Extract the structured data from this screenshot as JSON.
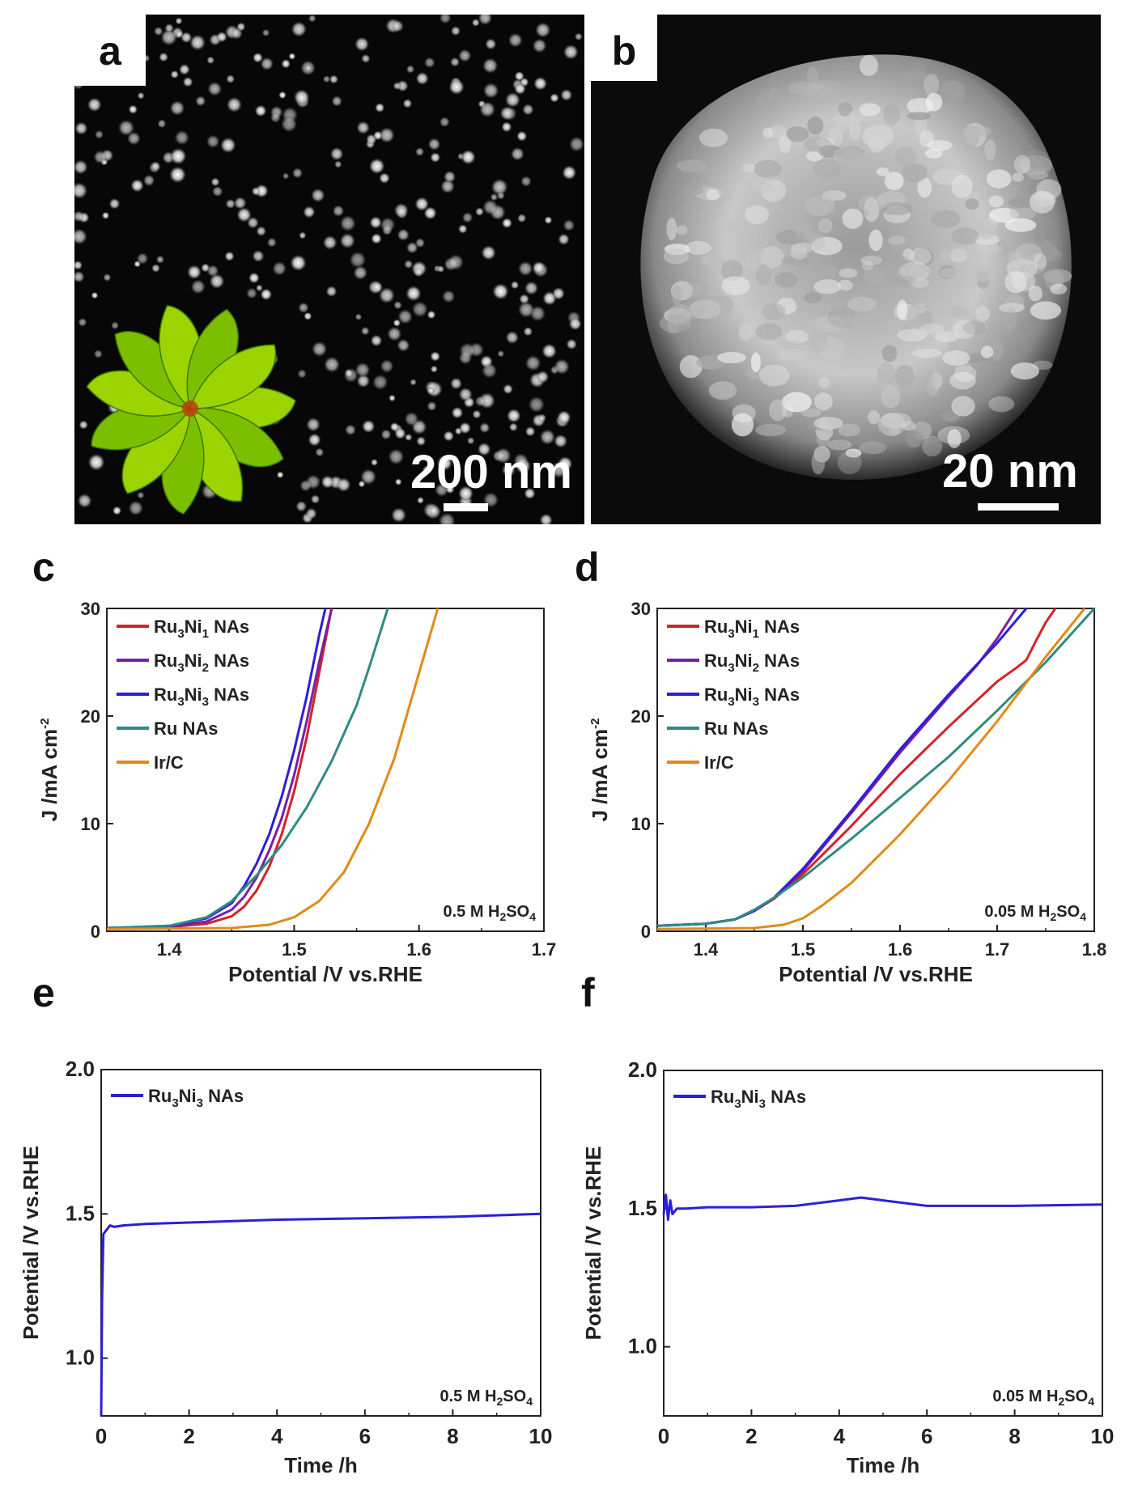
{
  "panels": {
    "a": {
      "label": "a",
      "scale_text": "200 nm"
    },
    "b": {
      "label": "b",
      "scale_text": "20 nm"
    }
  },
  "chart_data": [
    {
      "panel": "c",
      "type": "line",
      "xlabel": "Potential /V vs.RHE",
      "ylabel": "J /mA cm",
      "xlim": [
        1.35,
        1.7
      ],
      "ylim": [
        0,
        30
      ],
      "xticks": [
        1.4,
        1.5,
        1.6,
        1.7
      ],
      "yticks": [
        0,
        10,
        20,
        30
      ],
      "annotation": {
        "prefix": "0.5 M H",
        "sub1": "2",
        "mid": "SO",
        "sub2": "4"
      },
      "series": [
        {
          "name": "Ru3Ni1 NAs",
          "label_parts": [
            "Ru",
            "3",
            "Ni",
            "1",
            " NAs"
          ],
          "color": "#d2232a",
          "x": [
            1.35,
            1.4,
            1.43,
            1.45,
            1.46,
            1.47,
            1.48,
            1.49,
            1.5,
            1.51,
            1.52,
            1.53
          ],
          "y": [
            0.3,
            0.4,
            0.7,
            1.4,
            2.3,
            3.8,
            6.0,
            9.0,
            13.0,
            18.0,
            24.0,
            30.0
          ]
        },
        {
          "name": "Ru3Ni2 NAs",
          "label_parts": [
            "Ru",
            "3",
            "Ni",
            "2",
            " NAs"
          ],
          "color": "#7a1fa2",
          "x": [
            1.35,
            1.4,
            1.43,
            1.45,
            1.46,
            1.47,
            1.48,
            1.49,
            1.5,
            1.51,
            1.52,
            1.53
          ],
          "y": [
            0.3,
            0.4,
            0.9,
            2.0,
            3.2,
            5.0,
            7.5,
            10.5,
            14.5,
            19.5,
            25.0,
            30.0
          ]
        },
        {
          "name": "Ru3Ni3 NAs",
          "label_parts": [
            "Ru",
            "3",
            "Ni",
            "3",
            " NAs"
          ],
          "color": "#2b1fd8",
          "x": [
            1.35,
            1.4,
            1.43,
            1.45,
            1.46,
            1.47,
            1.48,
            1.49,
            1.5,
            1.51,
            1.52,
            1.525
          ],
          "y": [
            0.3,
            0.5,
            1.2,
            2.6,
            4.2,
            6.3,
            9.0,
            12.5,
            16.8,
            21.8,
            27.5,
            30.0
          ]
        },
        {
          "name": "Ru NAs",
          "label_parts": [
            "Ru NAs"
          ],
          "color": "#2f8a84",
          "x": [
            1.35,
            1.4,
            1.43,
            1.45,
            1.47,
            1.49,
            1.51,
            1.53,
            1.55,
            1.56,
            1.575
          ],
          "y": [
            0.3,
            0.5,
            1.3,
            2.8,
            5.2,
            8.0,
            11.5,
            15.8,
            21.0,
            24.5,
            30.0
          ]
        },
        {
          "name": "Ir/C",
          "label_parts": [
            "Ir/C"
          ],
          "color": "#e08a17",
          "x": [
            1.35,
            1.45,
            1.48,
            1.5,
            1.52,
            1.54,
            1.56,
            1.58,
            1.6,
            1.615
          ],
          "y": [
            0.2,
            0.3,
            0.6,
            1.3,
            2.8,
            5.5,
            10.0,
            16.0,
            24.0,
            30.0
          ]
        }
      ]
    },
    {
      "panel": "d",
      "type": "line",
      "xlabel": "Potential /V vs.RHE",
      "ylabel": "J /mA cm",
      "xlim": [
        1.35,
        1.8
      ],
      "ylim": [
        0,
        30
      ],
      "xticks": [
        1.4,
        1.5,
        1.6,
        1.7,
        1.8
      ],
      "yticks": [
        0,
        10,
        20,
        30
      ],
      "annotation": {
        "prefix": "0.05 M H",
        "sub1": "2",
        "mid": "SO",
        "sub2": "4"
      },
      "series": [
        {
          "name": "Ru3Ni1 NAs",
          "label_parts": [
            "Ru",
            "3",
            "Ni",
            "1",
            " NAs"
          ],
          "color": "#d2232a",
          "x": [
            1.35,
            1.4,
            1.43,
            1.45,
            1.47,
            1.5,
            1.55,
            1.6,
            1.65,
            1.7,
            1.72,
            1.73,
            1.74,
            1.75,
            1.76
          ],
          "y": [
            0.5,
            0.7,
            1.1,
            1.9,
            3.0,
            5.3,
            9.8,
            14.6,
            19.0,
            23.2,
            24.5,
            25.2,
            27.0,
            28.7,
            30.0
          ]
        },
        {
          "name": "Ru3Ni2 NAs",
          "label_parts": [
            "Ru",
            "3",
            "Ni",
            "2",
            " NAs"
          ],
          "color": "#7a1fa2",
          "x": [
            1.35,
            1.4,
            1.43,
            1.45,
            1.47,
            1.5,
            1.55,
            1.6,
            1.65,
            1.68,
            1.7,
            1.72
          ],
          "y": [
            0.5,
            0.7,
            1.1,
            1.9,
            3.1,
            5.6,
            11.0,
            16.6,
            21.8,
            24.8,
            27.2,
            30.0
          ]
        },
        {
          "name": "Ru3Ni3 NAs",
          "label_parts": [
            "Ru",
            "3",
            "Ni",
            "3",
            " NAs"
          ],
          "color": "#2b1fd8",
          "x": [
            1.35,
            1.4,
            1.43,
            1.45,
            1.47,
            1.5,
            1.55,
            1.6,
            1.65,
            1.7,
            1.73
          ],
          "y": [
            0.5,
            0.7,
            1.1,
            1.9,
            3.1,
            5.8,
            11.2,
            16.9,
            22.0,
            26.8,
            30.0
          ]
        },
        {
          "name": "Ru NAs",
          "label_parts": [
            "Ru NAs"
          ],
          "color": "#2f8a84",
          "x": [
            1.35,
            1.4,
            1.43,
            1.45,
            1.47,
            1.5,
            1.55,
            1.6,
            1.65,
            1.7,
            1.75,
            1.8
          ],
          "y": [
            0.5,
            0.7,
            1.1,
            2.0,
            3.1,
            5.0,
            8.6,
            12.4,
            16.2,
            20.5,
            25.0,
            30.0
          ]
        },
        {
          "name": "Ir/C",
          "label_parts": [
            "Ir/C"
          ],
          "color": "#e08a17",
          "x": [
            1.35,
            1.45,
            1.48,
            1.5,
            1.52,
            1.55,
            1.6,
            1.65,
            1.7,
            1.75,
            1.79
          ],
          "y": [
            0.2,
            0.3,
            0.6,
            1.2,
            2.4,
            4.5,
            9.0,
            14.0,
            19.5,
            25.5,
            30.0
          ]
        }
      ]
    },
    {
      "panel": "e",
      "type": "line",
      "xlabel": "Time /h",
      "ylabel": "Potential /V vs.RHE",
      "xlim": [
        0,
        10
      ],
      "ylim": [
        0.8,
        2.0
      ],
      "xticks": [
        0,
        2,
        4,
        6,
        8,
        10
      ],
      "yticks": [
        1.0,
        1.5,
        2.0
      ],
      "annotation": {
        "prefix": "0.5 M H",
        "sub1": "2",
        "mid": "SO",
        "sub2": "4"
      },
      "series": [
        {
          "name": "Ru3Ni3 NAs",
          "label_parts": [
            "Ru",
            "3",
            "Ni",
            "3",
            " NAs"
          ],
          "color": "#2b1fd8",
          "x": [
            0,
            0.02,
            0.05,
            0.1,
            0.2,
            0.3,
            0.5,
            1,
            2,
            3,
            4,
            6,
            8,
            10
          ],
          "y": [
            0.8,
            1.2,
            1.43,
            1.44,
            1.46,
            1.455,
            1.46,
            1.465,
            1.47,
            1.475,
            1.48,
            1.485,
            1.49,
            1.5
          ]
        }
      ]
    },
    {
      "panel": "f",
      "type": "line",
      "xlabel": "Time /h",
      "ylabel": "Potential /V vs.RHE",
      "xlim": [
        0,
        10
      ],
      "ylim": [
        0.75,
        2.0
      ],
      "xticks": [
        0,
        2,
        4,
        6,
        8,
        10
      ],
      "yticks": [
        1.0,
        1.5,
        2.0
      ],
      "annotation": {
        "prefix": "0.05 M H",
        "sub1": "2",
        "mid": "SO",
        "sub2": "4"
      },
      "series": [
        {
          "name": "Ru3Ni3 NAs",
          "label_parts": [
            "Ru",
            "3",
            "Ni",
            "3",
            " NAs"
          ],
          "color": "#2b1fd8",
          "x": [
            0,
            0.05,
            0.1,
            0.15,
            0.2,
            0.3,
            0.5,
            1,
            2,
            3,
            4,
            4.5,
            5,
            6,
            8,
            10
          ],
          "y": [
            1.48,
            1.55,
            1.46,
            1.53,
            1.48,
            1.5,
            1.5,
            1.505,
            1.505,
            1.51,
            1.53,
            1.54,
            1.53,
            1.51,
            1.51,
            1.515
          ]
        }
      ]
    }
  ]
}
